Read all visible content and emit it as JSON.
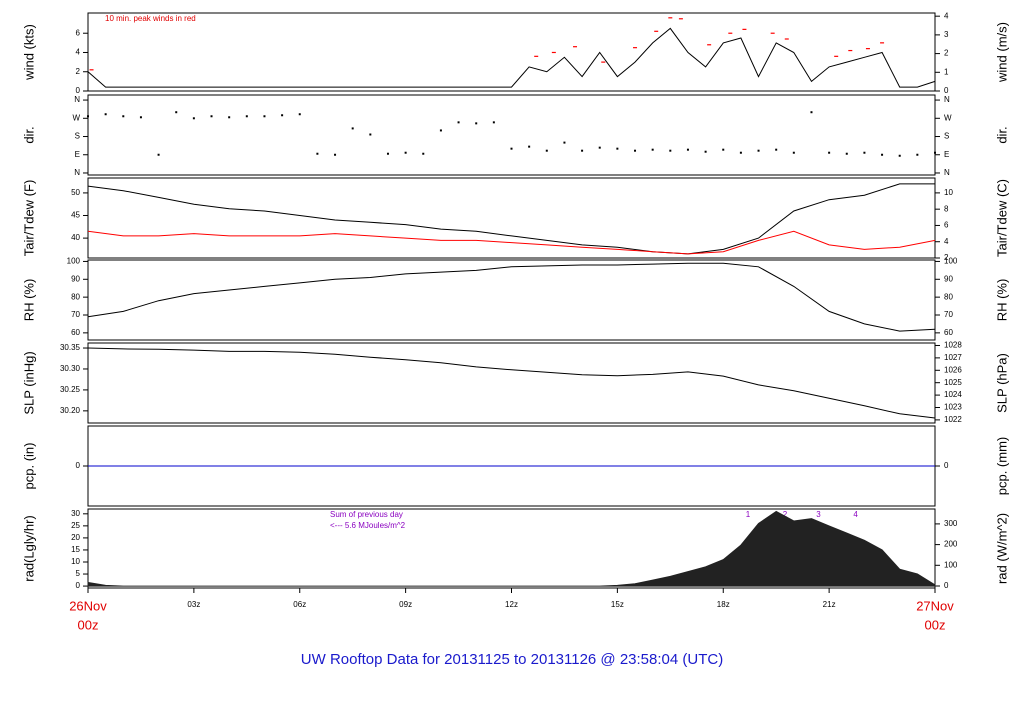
{
  "title": "UW Rooftop Data for 20131125  to  20131126 @ 23:58:04  (UTC)",
  "x_axis": {
    "xlim": [
      0,
      24
    ],
    "xticks": [
      {
        "value": 0,
        "label": "26Nov",
        "label2": "00z"
      },
      {
        "value": 3,
        "label": "03z"
      },
      {
        "value": 6,
        "label": "06z"
      },
      {
        "value": 9,
        "label": "09z"
      },
      {
        "value": 12,
        "label": "12z"
      },
      {
        "value": 15,
        "label": "15z"
      },
      {
        "value": 18,
        "label": "18z"
      },
      {
        "value": 21,
        "label": "21z"
      },
      {
        "value": 24,
        "label": "27Nov",
        "label2": "00z"
      }
    ]
  },
  "chart_data": [
    {
      "type": "line",
      "ylabel": "wind (kts)",
      "y2label": "wind (m/s)",
      "annotations": [
        "10 min. peak winds in red"
      ],
      "ylim": [
        0,
        8.1
      ],
      "yticks": [
        0,
        2,
        4,
        6
      ],
      "y2lim": [
        0,
        4.17
      ],
      "y2ticks": [
        0,
        1,
        2,
        3,
        4
      ],
      "x": [
        0,
        0.5,
        1,
        1.5,
        2,
        2.5,
        3,
        3.5,
        4,
        4.5,
        5,
        5.5,
        6,
        6.5,
        7,
        7.5,
        8,
        8.5,
        9,
        9.5,
        10,
        10.5,
        11,
        11.5,
        12,
        12.5,
        13,
        13.5,
        14,
        14.5,
        15,
        15.5,
        16,
        16.5,
        17,
        17.5,
        18,
        18.5,
        19,
        19.5,
        20,
        20.5,
        21,
        21.5,
        22,
        22.5,
        23,
        23.5,
        24
      ],
      "series": [
        {
          "color": "#000000",
          "values": [
            2,
            0.4,
            0.4,
            0.4,
            0.4,
            0.4,
            0.4,
            0.4,
            0.4,
            0.4,
            0.4,
            0.4,
            0.4,
            0.4,
            0.4,
            0.4,
            0.4,
            0.4,
            0.4,
            0.4,
            0.4,
            0.4,
            0.4,
            0.4,
            0.4,
            2.5,
            2,
            3.5,
            1.5,
            4,
            1.5,
            3,
            5,
            6.5,
            4,
            2.5,
            5,
            5.5,
            1.5,
            5,
            4,
            1,
            2.5,
            3,
            3.5,
            4,
            0.4,
            0.4,
            1
          ]
        },
        {
          "color": "#ff0000",
          "mark": "dash",
          "x": [
            0.1,
            12.7,
            13.2,
            13.8,
            14.6,
            15.5,
            16.1,
            16.5,
            16.8,
            17.6,
            18.2,
            18.6,
            19.4,
            19.8,
            21.2,
            21.6,
            22.1,
            22.5
          ],
          "values": [
            2.2,
            3.6,
            4,
            4.6,
            3,
            4.5,
            6.2,
            7.6,
            7.5,
            4.8,
            6,
            6.4,
            6,
            5.4,
            3.6,
            4.2,
            4.4,
            5
          ]
        }
      ]
    },
    {
      "type": "scatter",
      "ylabel": "dir.",
      "y2label": "dir.",
      "ylim": [
        -10,
        385
      ],
      "yticks": [
        {
          "value": 360,
          "label": "N"
        },
        {
          "value": 270,
          "label": "W"
        },
        {
          "value": 180,
          "label": "S"
        },
        {
          "value": 90,
          "label": "E"
        },
        {
          "value": 0,
          "label": "N"
        }
      ],
      "y2lim": [
        -10,
        385
      ],
      "y2ticks": [
        {
          "value": 360,
          "label": "N"
        },
        {
          "value": 270,
          "label": "W"
        },
        {
          "value": 180,
          "label": "S"
        },
        {
          "value": 90,
          "label": "E"
        },
        {
          "value": 0,
          "label": "N"
        }
      ],
      "x": [
        0,
        0.5,
        1,
        1.5,
        2,
        2.5,
        3,
        3.5,
        4,
        4.5,
        5,
        5.5,
        6,
        6.5,
        7,
        7.5,
        8,
        8.5,
        9,
        9.5,
        10,
        10.5,
        11,
        11.5,
        12,
        12.5,
        13,
        13.5,
        14,
        14.5,
        15,
        15.5,
        16,
        16.5,
        17,
        17.5,
        18,
        18.5,
        19,
        19.5,
        20,
        20.5,
        21,
        21.5,
        22,
        22.5,
        23,
        23.5,
        24
      ],
      "series": [
        {
          "color": "#000000",
          "values": [
            280,
            290,
            280,
            275,
            90,
            300,
            270,
            280,
            275,
            280,
            280,
            285,
            290,
            95,
            90,
            220,
            190,
            95,
            100,
            95,
            210,
            250,
            245,
            250,
            120,
            130,
            110,
            150,
            110,
            125,
            120,
            110,
            115,
            110,
            115,
            105,
            115,
            100,
            110,
            115,
            100,
            300,
            100,
            95,
            100,
            90,
            85,
            90,
            100
          ]
        }
      ]
    },
    {
      "type": "line",
      "ylabel": "Tair/Tdew (F)",
      "y2label": "Tair/Tdew (C)",
      "ylim": [
        35.6,
        53.3
      ],
      "yticks": [
        40,
        45,
        50
      ],
      "y2lim": [
        2,
        11.83
      ],
      "y2ticks": [
        2,
        4,
        6,
        8,
        10
      ],
      "x": [
        0,
        1,
        2,
        3,
        4,
        5,
        6,
        7,
        8,
        9,
        10,
        11,
        12,
        13,
        14,
        15,
        16,
        17,
        18,
        19,
        20,
        21,
        22,
        23,
        24
      ],
      "series": [
        {
          "color": "#000000",
          "values": [
            51.5,
            50.5,
            49,
            47.5,
            46.5,
            46,
            45,
            44,
            43.5,
            43,
            42,
            41.5,
            40.5,
            39.5,
            38.5,
            38,
            37,
            36.5,
            37.5,
            40,
            46,
            48.5,
            49.5,
            52,
            52
          ]
        },
        {
          "color": "#ff0000",
          "values": [
            41.5,
            40.5,
            40.5,
            41,
            40.5,
            40.5,
            40.5,
            41,
            40.5,
            40,
            39.5,
            39.5,
            39,
            38.5,
            38,
            37.5,
            37,
            36.5,
            37,
            39.5,
            41.5,
            38.5,
            37.5,
            38,
            39.5
          ]
        }
      ]
    },
    {
      "type": "line",
      "ylabel": "RH (%)",
      "y2label": "RH (%)",
      "ylim": [
        56,
        100.8
      ],
      "yticks": [
        60,
        70,
        80,
        90,
        100
      ],
      "y2lim": [
        56,
        100.8
      ],
      "y2ticks": [
        60,
        70,
        80,
        90,
        100
      ],
      "x": [
        0,
        1,
        2,
        3,
        4,
        5,
        6,
        7,
        8,
        9,
        10,
        11,
        12,
        13,
        14,
        15,
        16,
        17,
        18,
        19,
        20,
        21,
        22,
        23,
        24
      ],
      "series": [
        {
          "color": "#000000",
          "values": [
            69,
            72,
            78,
            82,
            84,
            86,
            88,
            90,
            91,
            93,
            94,
            95,
            97,
            97.5,
            98,
            98,
            98.5,
            99,
            99,
            97,
            86,
            72,
            65,
            61,
            62
          ]
        }
      ]
    },
    {
      "type": "line",
      "ylabel": "SLP (inHg)",
      "y2label": "SLP (hPa)",
      "ylim": [
        30.171,
        30.362
      ],
      "yticks": [
        {
          "value": 30.2,
          "label": "30.20"
        },
        30.25,
        {
          "value": 30.3,
          "label": "30.30"
        },
        30.35
      ],
      "y2lim": [
        1021.75,
        1028.2
      ],
      "y2ticks": [
        1022,
        1023,
        1024,
        1025,
        1026,
        1027,
        1028
      ],
      "x": [
        0,
        1,
        2,
        3,
        4,
        5,
        6,
        7,
        8,
        9,
        10,
        11,
        12,
        13,
        14,
        15,
        16,
        17,
        18,
        19,
        20,
        21,
        22,
        23,
        24
      ],
      "series": [
        {
          "color": "#000000",
          "values": [
            30.35,
            30.348,
            30.347,
            30.345,
            30.342,
            30.342,
            30.34,
            30.335,
            30.328,
            30.322,
            30.315,
            30.305,
            30.298,
            30.292,
            30.286,
            30.284,
            30.287,
            30.293,
            30.283,
            30.262,
            30.248,
            30.23,
            30.212,
            30.193,
            30.183
          ]
        }
      ]
    },
    {
      "type": "line",
      "ylabel": "pcp. (in)",
      "y2label": "pcp. (mm)",
      "ylim": [
        -1,
        1
      ],
      "yticks": [
        0
      ],
      "y2lim": [
        -1,
        1
      ],
      "y2ticks": [
        0
      ],
      "x": [
        0,
        1,
        2,
        3,
        4,
        5,
        6,
        7,
        8,
        9,
        10,
        11,
        12,
        13,
        14,
        15,
        16,
        17,
        18,
        19,
        20,
        21,
        22,
        23,
        24
      ],
      "series": [
        {
          "color": "#0000cc",
          "values": [
            0,
            0,
            0,
            0,
            0,
            0,
            0,
            0,
            0,
            0,
            0,
            0,
            0,
            0,
            0,
            0,
            0,
            0,
            0,
            0,
            0,
            0,
            0,
            0,
            0
          ]
        }
      ]
    },
    {
      "type": "area",
      "ylabel": "rad(Lgly/hr)",
      "y2label": "rad (W/m^2)",
      "annotations": [
        "Sum of previous day",
        "<--- 5.6 MJoules/m^2"
      ],
      "markers": [
        {
          "label": "1",
          "x": 18.7
        },
        {
          "label": "2",
          "x": 19.75
        },
        {
          "label": "3",
          "x": 20.7
        },
        {
          "label": "4",
          "x": 21.75
        }
      ],
      "ylim": [
        -0.8,
        32
      ],
      "yticks": [
        0,
        5,
        10,
        15,
        20,
        25,
        30
      ],
      "y2lim": [
        -9.7,
        372
      ],
      "y2ticks": [
        0,
        100,
        200,
        300
      ],
      "x": [
        0,
        0.5,
        1,
        1.5,
        2,
        2.5,
        3,
        3.5,
        4,
        4.5,
        5,
        5.5,
        6,
        6.5,
        7,
        7.5,
        8,
        8.5,
        9,
        9.5,
        10,
        10.5,
        11,
        11.5,
        12,
        12.5,
        13,
        13.5,
        14,
        14.5,
        15,
        15.5,
        16,
        16.5,
        17,
        17.5,
        18,
        18.5,
        19,
        19.5,
        20,
        20.5,
        21,
        21.5,
        22,
        22.5,
        23,
        23.5,
        24
      ],
      "series": [
        {
          "color": "#222222",
          "values": [
            1.5,
            0.3,
            0,
            0,
            0,
            0,
            0,
            0,
            0,
            0,
            0,
            0,
            0,
            0,
            0,
            0,
            0,
            0,
            0,
            0,
            0,
            0,
            0,
            0,
            0,
            0,
            0,
            0,
            0,
            0,
            0.3,
            1,
            2.5,
            4,
            6,
            8,
            11,
            17,
            26,
            31,
            27,
            28,
            25,
            22,
            19,
            15,
            7,
            5,
            0.5
          ]
        }
      ]
    }
  ]
}
